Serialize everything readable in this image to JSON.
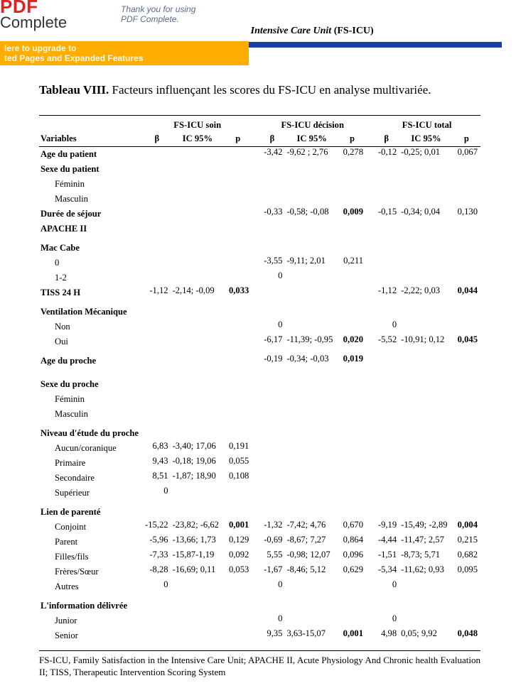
{
  "banner": {
    "pdf": "PDF",
    "complete": "Complete",
    "thank_l1": "Thank you for using",
    "thank_l2": "PDF Complete.",
    "upg_l1": "lere to upgrade to",
    "upg_l2": "ted Pages and Expanded Features"
  },
  "header": {
    "title_ital": "tion in the Intensive Care Unit ",
    "title_plain": "(FS-ICU)"
  },
  "caption": {
    "lead": "Tableau VIII.",
    "rest": "  Facteurs  influençant  les  scores  du  FS-ICU en  analyse multivariée."
  },
  "groups": {
    "g1": "FS-ICU soin",
    "g2": "FS-ICU  décision",
    "g3": "FS-ICU total"
  },
  "subheaders": {
    "var": "Variables",
    "b": "β",
    "ci": "IC 95%",
    "p": "p"
  },
  "footnote": "FS-ICU, Family Satisfaction in the Intensive Care Unit; APACHE II, Acute Physiology And Chronic health Evaluation II; TISS, Therapeutic Intervention Scoring System",
  "rows": [
    {
      "label": "Age du patient",
      "bold": true,
      "d": {
        "b": "-3,42",
        "ci": "-9,62 ; 2,76",
        "p": "0,278"
      },
      "t": {
        "b": "-0,12",
        "ci": "-0,25; 0,01",
        "p": "0,067"
      }
    },
    {
      "label": "Sexe du patient",
      "bold": true
    },
    {
      "label": "Féminin",
      "indent": true
    },
    {
      "label": "Masculin",
      "indent": true
    },
    {
      "label": "Durée de séjour",
      "bold": true,
      "d": {
        "b": "-0,33",
        "ci": "-0,58;  -0,08",
        "p": "0,009",
        "pbold": true
      },
      "t": {
        "b": "-0,15",
        "ci": "-0,34; 0,04",
        "p": "0,130"
      }
    },
    {
      "label": "APACHE  II",
      "bold": true
    },
    {
      "spacer": true
    },
    {
      "label": "Mac  Cabe",
      "bold": true
    },
    {
      "label": "0",
      "indent": true,
      "d": {
        "b": "-3,55",
        "ci": "-9,11; 2,01",
        "p": "0,211"
      }
    },
    {
      "label": "1-2",
      "indent": true,
      "d": {
        "b": "0"
      }
    },
    {
      "label": "TISS  24 H",
      "bold": true,
      "s": {
        "b": "-1,12",
        "ci": "-2,14; -0,09",
        "p": "0,033",
        "pbold": true
      },
      "t": {
        "b": "-1,12",
        "ci": "-2,22; 0,03",
        "p": "0,044",
        "pbold": true
      }
    },
    {
      "spacer": true
    },
    {
      "label": "Ventilation Mécanique",
      "bold": true
    },
    {
      "label": "Non",
      "indent": true,
      "d": {
        "b": "0"
      },
      "t": {
        "b": "0"
      }
    },
    {
      "label": "Oui",
      "indent": true,
      "d": {
        "b": "-6,17",
        "ci": "-11,39; -0,95",
        "p": "0,020",
        "pbold": true
      },
      "t": {
        "b": "-5,52",
        "ci": "-10,91; 0,12",
        "p": "0,045",
        "pbold": true
      }
    },
    {
      "spacer": true
    },
    {
      "label": "Age du proche",
      "bold": true,
      "d": {
        "b": "-0,19",
        "ci": "-0,34; -0,03",
        "p": "0,019",
        "pbold": true
      }
    },
    {
      "spacer": true
    },
    {
      "spacer": true
    },
    {
      "label": "Sexe du proche",
      "bold": true
    },
    {
      "label": "Féminin",
      "indent": true
    },
    {
      "label": "Masculin",
      "indent": true
    },
    {
      "spacer": true
    },
    {
      "label": "Niveau d'étude du proche",
      "bold": true
    },
    {
      "label": "Aucun/coranique",
      "indent": true,
      "s": {
        "b": "6,83",
        "ci": "-3,40; 17,06",
        "p": "0,191"
      }
    },
    {
      "label": "Primaire",
      "indent": true,
      "s": {
        "b": "9,43",
        "ci": "-0,18; 19,06",
        "p": "0,055"
      }
    },
    {
      "label": "Secondaire",
      "indent": true,
      "s": {
        "b": "8,51",
        "ci": "-1,87; 18,90",
        "p": "0,108"
      }
    },
    {
      "label": "Supérieur",
      "indent": true,
      "s": {
        "b": "0"
      }
    },
    {
      "spacer": true
    },
    {
      "label": "Lien de parenté",
      "bold": true
    },
    {
      "label": "Conjoint",
      "indent": true,
      "s": {
        "b": "-15,22",
        "ci": "-23,82; -6,62",
        "p": "0,001",
        "pbold": true
      },
      "d": {
        "b": "-1,32",
        "ci": "-7,42; 4,76",
        "p": "0,670"
      },
      "t": {
        "b": "-9,19",
        "ci": "-15,49; -2,89",
        "p": "0,004",
        "pbold": true
      }
    },
    {
      "label": "Parent",
      "indent": true,
      "s": {
        "b": "-5,96",
        "ci": "-13,66; 1,73",
        "p": "0,129"
      },
      "d": {
        "b": "-0,69",
        "ci": "-8,67; 7,27",
        "p": "0,864"
      },
      "t": {
        "b": "-4,44",
        "ci": "-11,47; 2,57",
        "p": "0,215"
      }
    },
    {
      "label": "Filles/fils",
      "indent": true,
      "s": {
        "b": "-7,33",
        "ci": "-15,87-1,19",
        "p": "0,092"
      },
      "d": {
        "b": "5,55",
        "ci": "-0,98; 12,07",
        "p": "0,096"
      },
      "t": {
        "b": "-1,51",
        "ci": "-8,73;  5,71",
        "p": "0,682"
      }
    },
    {
      "label": "Frères/Sœur",
      "indent": true,
      "s": {
        "b": "-8,28",
        "ci": "-16,69;  0,11",
        "p": "0,053"
      },
      "d": {
        "b": "-1,67",
        "ci": "-8,46; 5,12",
        "p": "0,629"
      },
      "t": {
        "b": "-5,34",
        "ci": "-11,62; 0,93",
        "p": "0,095"
      }
    },
    {
      "label": "Autres",
      "indent": true,
      "s": {
        "b": "0"
      },
      "d": {
        "b": "0"
      },
      "t": {
        "b": "0"
      }
    },
    {
      "spacer": true
    },
    {
      "label": "L'information délivrée",
      "bold": true
    },
    {
      "label": "Junior",
      "indent": true,
      "d": {
        "b": "0"
      },
      "t": {
        "b": "0"
      }
    },
    {
      "label": "Senior",
      "indent": true,
      "d": {
        "b": "9,35",
        "ci": "3,63-15,07",
        "p": "0,001",
        "pbold": true
      },
      "t": {
        "b": "4,98",
        "ci": "0,05; 9,92",
        "p": "0,048",
        "pbold": true
      }
    }
  ]
}
